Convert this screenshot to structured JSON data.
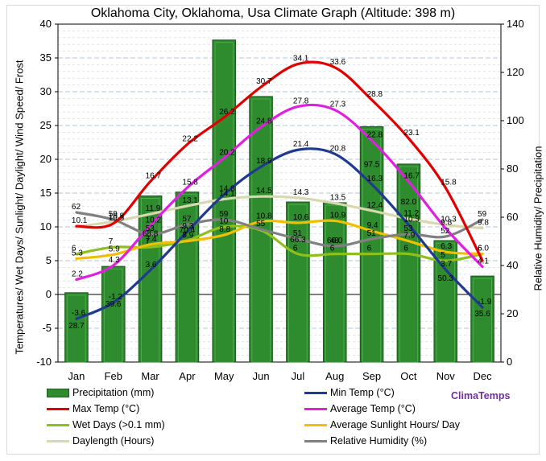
{
  "chart_data": {
    "type": "bar+line",
    "title": "Oklahoma City, Oklahoma, Usa Climate Graph (Altitude: 398 m)",
    "categories": [
      "Jan",
      "Feb",
      "Mar",
      "Apr",
      "May",
      "Jun",
      "Jul",
      "Aug",
      "Sep",
      "Oct",
      "Nov",
      "Dec"
    ],
    "ylabel_left": "Temperatures/ Wet Days/ Sunlight/ Daylight/ Wind Speed/ Frost",
    "ylabel_right": "Relative Humidity/ Precipitation",
    "ylim_left": [
      -10,
      40
    ],
    "yticks_left": [
      "-10",
      "-5",
      "0",
      "5",
      "10",
      "15",
      "20",
      "25",
      "30",
      "35",
      "40"
    ],
    "ylim_right": [
      0,
      140
    ],
    "yticks_right": [
      "0",
      "20",
      "40",
      "60",
      "80",
      "100",
      "120",
      "140"
    ],
    "grid": true,
    "legend_position": "bottom",
    "bar_series": {
      "name": "Precipitation (mm)",
      "axis": "right",
      "color": "#2e8b2e",
      "values": [
        28.7,
        39.6,
        68.8,
        70.4,
        133.4,
        110.0,
        66.3,
        66.0,
        97.5,
        82.0,
        50.3,
        35.6
      ],
      "labels": [
        "28.7",
        "39.6",
        "68.8",
        "70.4",
        "",
        "",
        "66.3",
        "66.0",
        "97.5",
        "82.0",
        "50.3",
        "35.6"
      ]
    },
    "series": [
      {
        "name": "Max Temp (°C)",
        "color": "#e00000",
        "values": [
          10.1,
          10.5,
          16.7,
          22.2,
          26.2,
          30.7,
          34.1,
          33.6,
          28.8,
          23.1,
          15.8,
          5.0
        ],
        "labels": [
          "10.1",
          "10.5",
          "16.7",
          "22.2",
          "26.2",
          "30.7",
          "34.1",
          "33.6",
          "28.8",
          "23.1",
          "15.8",
          ""
        ]
      },
      {
        "name": "Min Temp (°C)",
        "color": "#203a8f",
        "values": [
          -3.6,
          -1.2,
          3.6,
          9.3,
          14.8,
          18.9,
          21.4,
          20.8,
          16.3,
          10.3,
          3.7,
          -1.9
        ],
        "labels": [
          "-3.6",
          "-1.2",
          "3.6",
          "9.3",
          "14.8",
          "18.9",
          "21.4",
          "20.8",
          "16.3",
          "10.3",
          "3.7",
          "-1.9"
        ]
      },
      {
        "name": "Average Temp (°C)",
        "color": "#e020e0",
        "values": [
          2.2,
          4.3,
          10.2,
          15.8,
          20.2,
          24.8,
          27.8,
          27.3,
          22.8,
          16.7,
          9.8,
          4.1
        ],
        "labels": [
          "2.2",
          "4.3",
          "10.2",
          "15.8",
          "20.2",
          "24.8",
          "27.8",
          "27.3",
          "22.8",
          "16.7",
          "9.8",
          "4.1"
        ]
      },
      {
        "name": "Wet Days (>0.1 mm)",
        "color": "#8fbf1f",
        "values": [
          6,
          7,
          7,
          8,
          10,
          9.5,
          6,
          6,
          6,
          6,
          5,
          6
        ],
        "labels": [
          "6",
          "7",
          "7",
          "8",
          "10",
          "",
          "6",
          "6",
          "6",
          "6",
          "5",
          "6"
        ]
      },
      {
        "name": "Average Sunlight Hours/ Day",
        "color": "#f0c000",
        "values": [
          5.3,
          5.9,
          7.4,
          7.9,
          8.8,
          10.8,
          10.6,
          10.9,
          9.4,
          7.9,
          6.3,
          6.0
        ],
        "labels": [
          "5.3",
          "5.9",
          "7.4",
          "7.9",
          "8.8",
          "10.8",
          "10.6",
          "10.9",
          "9.4",
          "7.9",
          "6.3",
          "6.0"
        ]
      },
      {
        "name": "Daylength (Hours)",
        "color": "#d8d8b0",
        "values": [
          10,
          10.8,
          11.9,
          13.1,
          14.1,
          14.5,
          14.3,
          13.5,
          12.4,
          11.2,
          10.3,
          9.8
        ],
        "labels": [
          "",
          "10.8",
          "11.9",
          "13.1",
          "14.1",
          "14.5",
          "14.3",
          "13.5",
          "12.4",
          "11.2",
          "10.3",
          "9.8"
        ]
      },
      {
        "name": "Relative Humidity (%)",
        "color": "#808080",
        "axis": "right",
        "values": [
          62,
          59,
          53,
          57,
          59,
          55,
          51,
          48,
          51,
          53,
          52,
          59
        ],
        "labels": [
          "62",
          "59",
          "53",
          "57",
          "59",
          "55",
          "51",
          "48",
          "51",
          "53",
          "52",
          "59"
        ]
      }
    ]
  },
  "brand": "ClimaTemps",
  "legend": [
    {
      "label": "Precipitation (mm)",
      "kind": "bar",
      "color": "#2e8b2e"
    },
    {
      "label": "Min Temp (°C)",
      "kind": "line",
      "color": "#203a8f"
    },
    {
      "label": "Max Temp (°C)",
      "kind": "line",
      "color": "#e00000"
    },
    {
      "label": "Average Temp (°C)",
      "kind": "line",
      "color": "#e020e0"
    },
    {
      "label": "Wet Days (>0.1 mm)",
      "kind": "line",
      "color": "#8fbf1f"
    },
    {
      "label": "Average Sunlight Hours/ Day",
      "kind": "line",
      "color": "#f0c000"
    },
    {
      "label": "Daylength (Hours)",
      "kind": "line",
      "color": "#d8d8b0"
    },
    {
      "label": "Relative Humidity (%)",
      "kind": "line",
      "color": "#808080"
    }
  ]
}
